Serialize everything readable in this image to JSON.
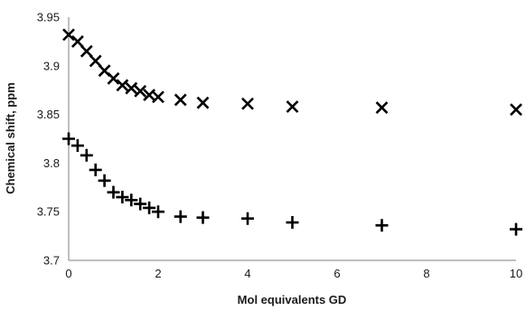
{
  "chart_data": {
    "type": "scatter",
    "title": "",
    "xlabel": "Mol equivalents GD",
    "ylabel": "Chemical shift, ppm",
    "xlim": [
      0,
      10
    ],
    "ylim": [
      3.7,
      3.95
    ],
    "x_ticks": [
      0,
      2,
      4,
      6,
      8,
      10
    ],
    "y_ticks": [
      3.7,
      3.75,
      3.8,
      3.85,
      3.9,
      3.95
    ],
    "x_tick_labels": [
      "0",
      "2",
      "4",
      "6",
      "8",
      "10"
    ],
    "y_tick_labels": [
      "3.7",
      "3.75",
      "3.8",
      "3.85",
      "3.9",
      "3.95"
    ],
    "grid": false,
    "series": [
      {
        "marker": "x",
        "points": [
          [
            0,
            3.932
          ],
          [
            0.2,
            3.925
          ],
          [
            0.4,
            3.915
          ],
          [
            0.6,
            3.905
          ],
          [
            0.8,
            3.895
          ],
          [
            1.0,
            3.887
          ],
          [
            1.2,
            3.88
          ],
          [
            1.4,
            3.877
          ],
          [
            1.6,
            3.874
          ],
          [
            1.8,
            3.87
          ],
          [
            2.0,
            3.868
          ],
          [
            2.5,
            3.865
          ],
          [
            3.0,
            3.862
          ],
          [
            4.0,
            3.861
          ],
          [
            5.0,
            3.858
          ],
          [
            7.0,
            3.857
          ],
          [
            10.0,
            3.855
          ]
        ]
      },
      {
        "marker": "+",
        "points": [
          [
            0,
            3.825
          ],
          [
            0.2,
            3.818
          ],
          [
            0.4,
            3.808
          ],
          [
            0.6,
            3.793
          ],
          [
            0.8,
            3.782
          ],
          [
            1.0,
            3.77
          ],
          [
            1.2,
            3.765
          ],
          [
            1.4,
            3.762
          ],
          [
            1.6,
            3.758
          ],
          [
            1.8,
            3.754
          ],
          [
            2.0,
            3.75
          ],
          [
            2.5,
            3.745
          ],
          [
            3.0,
            3.744
          ],
          [
            4.0,
            3.743
          ],
          [
            5.0,
            3.739
          ],
          [
            7.0,
            3.736
          ],
          [
            10.0,
            3.732
          ]
        ]
      }
    ]
  }
}
